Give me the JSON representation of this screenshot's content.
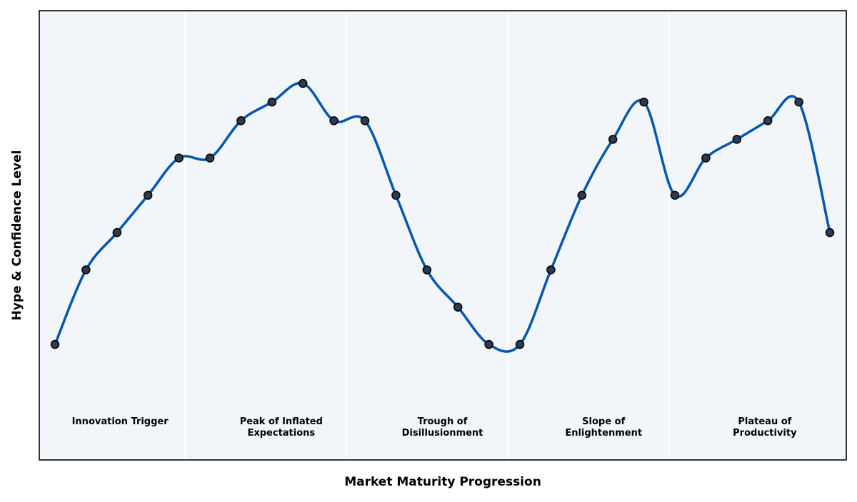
{
  "chart_data": {
    "type": "line",
    "title": "",
    "xlabel": "Market Maturity Progression",
    "ylabel": "Hype & Confidence Level",
    "x": [
      0,
      1,
      2,
      3,
      4,
      5,
      6,
      7,
      8,
      9,
      10,
      11,
      12,
      13,
      14,
      15,
      16,
      17,
      18,
      19,
      20,
      21,
      22,
      23,
      24,
      25
    ],
    "series": [
      {
        "values": [
          20,
          40,
          50,
          60,
          70,
          70,
          80,
          85,
          90,
          80,
          80,
          60,
          40,
          30,
          20,
          20,
          40,
          60,
          75,
          85,
          60,
          70,
          75,
          80,
          85,
          50
        ]
      }
    ],
    "ylim": [
      0,
      100
    ],
    "grid": false,
    "phases": [
      {
        "lines": [
          "Innovation Trigger"
        ]
      },
      {
        "lines": [
          "Peak of Inflated",
          "Expectations"
        ]
      },
      {
        "lines": [
          "Trough of",
          "Disillusionment"
        ]
      },
      {
        "lines": [
          "Slope of",
          "Enlightenment"
        ]
      },
      {
        "lines": [
          "Plateau of",
          "Productivity"
        ]
      }
    ],
    "colors": {
      "line": "#0057b0",
      "marker_fill": "#2e3b4e",
      "marker_edge": "#000000",
      "plot_background": "#f2f6fa",
      "separator": "#ffffff",
      "frame": "#333333"
    }
  }
}
